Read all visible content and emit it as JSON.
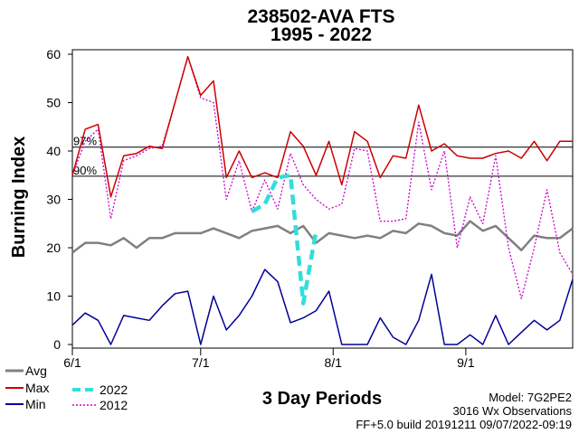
{
  "chart_data": {
    "type": "line",
    "title": "238502-AVA FTS",
    "subtitle": "1995 - 2022",
    "xlabel": "3 Day Periods",
    "ylabel": "Burning Index",
    "ylim": [
      0,
      60
    ],
    "yticks": [
      0,
      10,
      20,
      30,
      40,
      50,
      60
    ],
    "xticks": [
      {
        "label": "6/1",
        "period": 0
      },
      {
        "label": "7/1",
        "period": 10
      },
      {
        "label": "8/1",
        "period": 20.33
      },
      {
        "label": "9/1",
        "period": 30.67
      }
    ],
    "n_periods": 40,
    "percentiles": [
      {
        "label": "97%",
        "value": 40.8
      },
      {
        "label": "90%",
        "value": 34.8
      }
    ],
    "series": [
      {
        "name": "Avg",
        "color": "#808080",
        "style": "solid",
        "values": [
          19,
          21,
          21,
          20.5,
          22,
          20,
          22,
          22,
          23,
          23,
          23,
          24,
          23,
          22,
          23.5,
          24,
          24.5,
          23,
          24.5,
          21,
          23,
          22.5,
          22,
          22.5,
          22,
          23.5,
          23,
          25,
          24.5,
          23,
          22.5,
          25.5,
          23.5,
          24.5,
          22,
          19.5,
          22.5,
          22,
          22,
          24
        ]
      },
      {
        "name": "Max",
        "color": "#cc0000",
        "style": "solid",
        "values": [
          35,
          44.5,
          45.5,
          30.5,
          39,
          39.5,
          41,
          40.5,
          50,
          59.5,
          51.5,
          54.5,
          34.5,
          40,
          34.5,
          35.5,
          34.5,
          44,
          41,
          35,
          42,
          33,
          44,
          42,
          34.5,
          39,
          38.5,
          49.5,
          40,
          41.5,
          39,
          38.5,
          38.5,
          39.5,
          40,
          38.5,
          42,
          38,
          42,
          42
        ]
      },
      {
        "name": "Min",
        "color": "#000099",
        "style": "solid",
        "values": [
          4,
          6.5,
          5,
          0,
          6,
          5.5,
          5,
          8,
          10.5,
          11,
          0,
          10,
          3,
          6,
          10,
          15.5,
          13,
          4.5,
          5.5,
          7,
          11,
          0,
          0,
          0,
          5.5,
          1.5,
          0,
          5,
          14.5,
          0,
          0,
          2,
          0,
          6,
          0,
          2.5,
          5,
          3,
          5,
          13.5
        ]
      },
      {
        "name": "2022",
        "color": "#33dddd",
        "style": "dashed",
        "values": [
          null,
          null,
          null,
          null,
          null,
          null,
          null,
          null,
          null,
          null,
          null,
          null,
          null,
          null,
          27.5,
          29,
          34.5,
          35,
          8.5,
          23.5,
          null,
          null,
          null,
          null,
          null,
          null,
          null,
          null,
          null,
          null,
          null,
          null,
          null,
          null,
          null,
          null,
          null,
          null,
          null,
          null
        ]
      },
      {
        "name": "2012",
        "color": "#cc00cc",
        "style": "dotted",
        "values": [
          35,
          42,
          44.5,
          26,
          38,
          39,
          40.5,
          41,
          50,
          59.5,
          51,
          50,
          30,
          38,
          27.5,
          34,
          28,
          39.5,
          33,
          30,
          28,
          29,
          40.5,
          40,
          25.5,
          25.5,
          26,
          46,
          32,
          40,
          20,
          30.5,
          25,
          39,
          20,
          9.5,
          20,
          32,
          19,
          14.5
        ]
      }
    ]
  },
  "legend": {
    "avg": "Avg",
    "max": "Max",
    "min": "Min",
    "y2022": "2022",
    "y2012": "2012"
  },
  "footer": {
    "model": "Model:  7G2PE2",
    "observations": "3016 Wx Observations",
    "build": "FF+5.0 build 20191211  09/07/2022-09:19"
  }
}
